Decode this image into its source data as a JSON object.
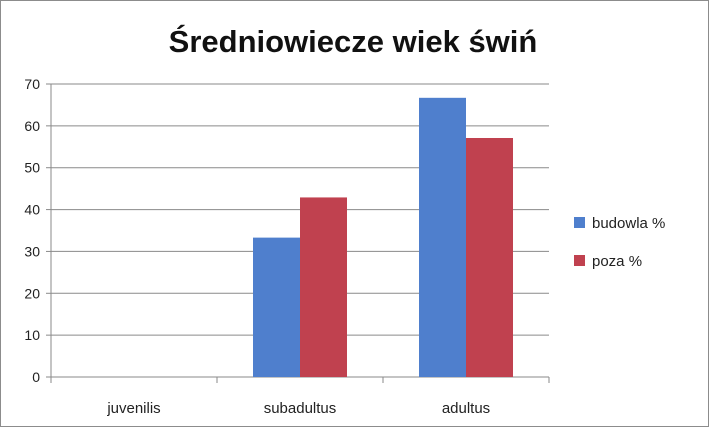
{
  "chart_data": {
    "type": "bar",
    "title": "Średniowiecze wiek świń",
    "xlabel": "",
    "ylabel": "",
    "categories": [
      "juvenilis",
      "subadultus",
      "adultus"
    ],
    "series": [
      {
        "name": "budowla %",
        "values": [
          0,
          33.3,
          66.7
        ],
        "color": "#4f7fcd"
      },
      {
        "name": "poza %",
        "values": [
          0,
          42.9,
          57.1
        ],
        "color": "#c0414f"
      }
    ],
    "ylim": [
      0,
      70
    ],
    "yticks": [
      "0",
      "10",
      "20",
      "30",
      "40",
      "50",
      "60",
      "70"
    ],
    "grid": true,
    "legend": "right"
  }
}
